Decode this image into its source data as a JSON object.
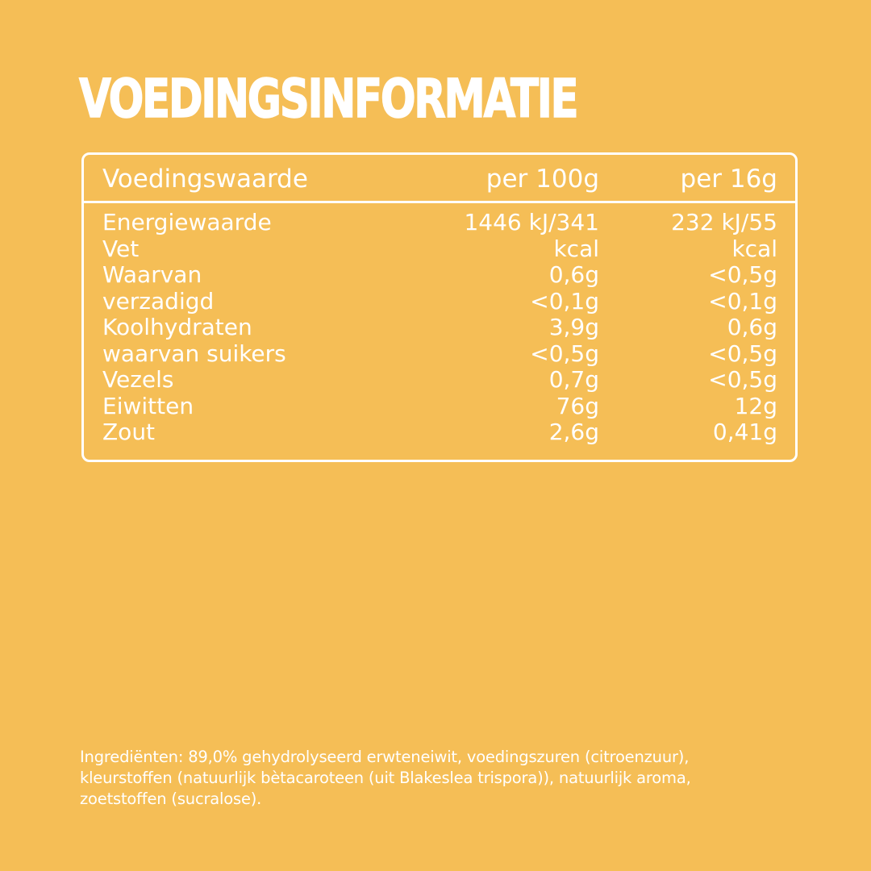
{
  "title": "VOEDINGSINFORMATIE",
  "table": {
    "header": {
      "label": "Voedingswaarde",
      "per_100g": "per 100g",
      "per_portion": "per 16g"
    },
    "rows": [
      {
        "label": "Energiewaarde",
        "per_100g": "1446 kJ/341",
        "per_portion": "232 kJ/55"
      },
      {
        "label": "Vet",
        "per_100g": "kcal",
        "per_portion": "kcal"
      },
      {
        "label": "Waarvan",
        "per_100g": "0,6g",
        "per_portion": "<0,5g"
      },
      {
        "label": "verzadigd",
        "per_100g": "<0,1g",
        "per_portion": "<0,1g"
      },
      {
        "label": "Koolhydraten",
        "per_100g": "3,9g",
        "per_portion": "0,6g"
      },
      {
        "label": "waarvan suikers",
        "per_100g": "<0,5g",
        "per_portion": "<0,5g"
      },
      {
        "label": "Vezels",
        "per_100g": "0,7g",
        "per_portion": "<0,5g"
      },
      {
        "label": "Eiwitten",
        "per_100g": "76g",
        "per_portion": "12g"
      },
      {
        "label": "Zout",
        "per_100g": "2,6g",
        "per_portion": "0,41g"
      }
    ]
  },
  "ingredients": {
    "line1": "Ingrediënten: 89,0% gehydrolyseerd erwteneiwit, voedingszuren (citroenzuur),",
    "line2": "kleurstoffen (natuurlijk bètacaroteen (uit Blakeslea trispora)), natuurlijk aroma,",
    "line3": "zoetstoffen (sucralose)."
  },
  "colors": {
    "background": "#F5BE56",
    "text": "#FFFFFF"
  }
}
